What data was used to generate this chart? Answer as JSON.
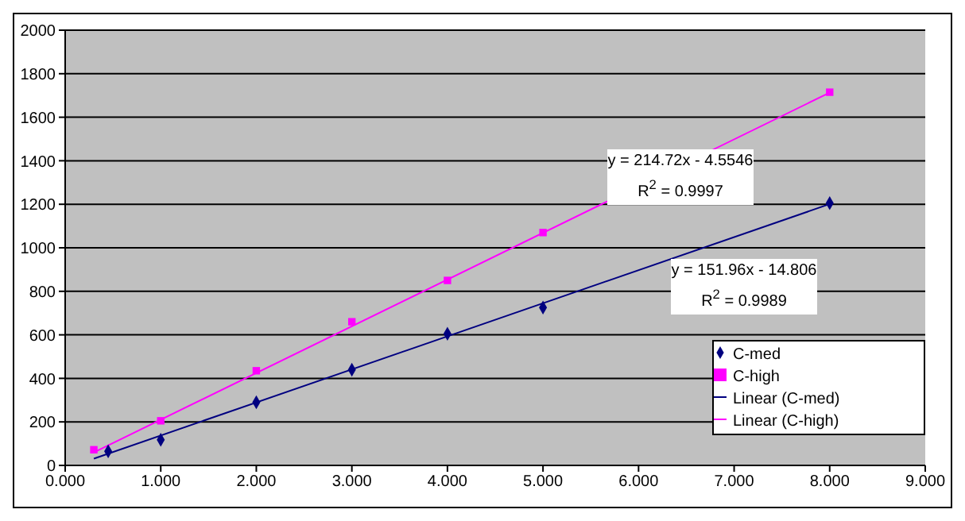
{
  "chart_data": {
    "type": "scatter",
    "xlim": [
      0,
      9
    ],
    "xticks": [
      {
        "value": 0,
        "label": "0.000"
      },
      {
        "value": 1,
        "label": "1.000"
      },
      {
        "value": 2,
        "label": "2.000"
      },
      {
        "value": 3,
        "label": "3.000"
      },
      {
        "value": 4,
        "label": "4.000"
      },
      {
        "value": 5,
        "label": "5.000"
      },
      {
        "value": 6,
        "label": "6.000"
      },
      {
        "value": 7,
        "label": "7.000"
      },
      {
        "value": 8,
        "label": "8.000"
      },
      {
        "value": 9,
        "label": "9.000"
      }
    ],
    "ylim": [
      0,
      2000
    ],
    "yticks": [
      0,
      200,
      400,
      600,
      800,
      1000,
      1200,
      1400,
      1600,
      1800,
      2000
    ],
    "grid": "y",
    "legend": "bottom right",
    "series": [
      {
        "name": "C-med",
        "type": "scatter",
        "marker": "diamond",
        "color": "#000080",
        "x": [
          0.45,
          1,
          2,
          3,
          4,
          5,
          8
        ],
        "values": [
          65,
          118,
          290,
          440,
          605,
          725,
          1205
        ]
      },
      {
        "name": "C-high",
        "type": "scatter",
        "marker": "square",
        "color": "#ff00ff",
        "x": [
          0.3,
          1,
          2,
          3,
          4,
          5,
          8
        ],
        "values": [
          72,
          205,
          435,
          660,
          850,
          1070,
          1715
        ]
      },
      {
        "name": "Linear (C-med)",
        "type": "line",
        "marker": "none",
        "color": "#000080",
        "x": [
          0.3,
          8
        ],
        "values": [
          31,
          1201
        ]
      },
      {
        "name": "Linear (C-high)",
        "type": "line",
        "marker": "none",
        "color": "#ff00ff",
        "x": [
          0.3,
          8
        ],
        "values": [
          60,
          1713
        ]
      }
    ],
    "annotations": [
      "y = 214.72x - 4.5546",
      "R$^{2}$ = 0.9997",
      "y = 151.96x - 14.806",
      "R$^{2}$ = 0.9989"
    ]
  }
}
